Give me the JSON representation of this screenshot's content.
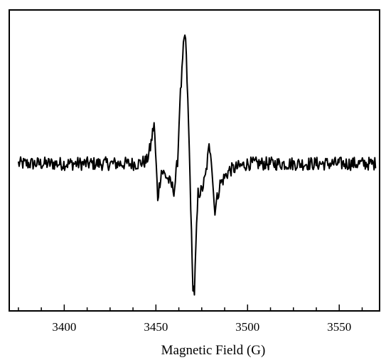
{
  "chart_data": {
    "type": "line",
    "title": "",
    "xlabel": "Magnetic Field (G)",
    "ylabel": "",
    "xlim": [
      3370,
      3572
    ],
    "ylim": [
      -1.0,
      1.0
    ],
    "x_ticks": [
      3400,
      3450,
      3500,
      3550
    ],
    "x_tick_labels": [
      "3400",
      "3450",
      "3500",
      "3550"
    ],
    "y_ticks_shown": false,
    "grid": false,
    "legend": "none",
    "baseline_noise_amplitude": 0.05,
    "series": [
      {
        "color": "#000000",
        "x": [
          3375,
          3380,
          3390,
          3400,
          3410,
          3420,
          3430,
          3440,
          3445,
          3447,
          3449,
          3451,
          3453,
          3456,
          3460,
          3462,
          3463,
          3464,
          3465,
          3466,
          3467,
          3468,
          3469,
          3470,
          3471,
          3472,
          3473,
          3475,
          3477,
          3479,
          3480,
          3482,
          3485,
          3490,
          3500,
          3510,
          3520,
          3530,
          3540,
          3550,
          3560,
          3570
        ],
        "y": [
          0.0,
          0.0,
          0.0,
          0.0,
          0.0,
          0.0,
          0.0,
          0.0,
          0.02,
          0.12,
          0.3,
          -0.25,
          -0.05,
          -0.1,
          -0.2,
          0.05,
          0.45,
          0.62,
          0.85,
          0.98,
          0.62,
          0.2,
          -0.3,
          -0.88,
          -0.95,
          -0.55,
          -0.22,
          -0.2,
          -0.1,
          0.12,
          0.1,
          -0.35,
          -0.15,
          -0.05,
          0.0,
          0.0,
          0.0,
          0.0,
          0.0,
          0.0,
          0.0,
          0.0
        ]
      }
    ]
  }
}
